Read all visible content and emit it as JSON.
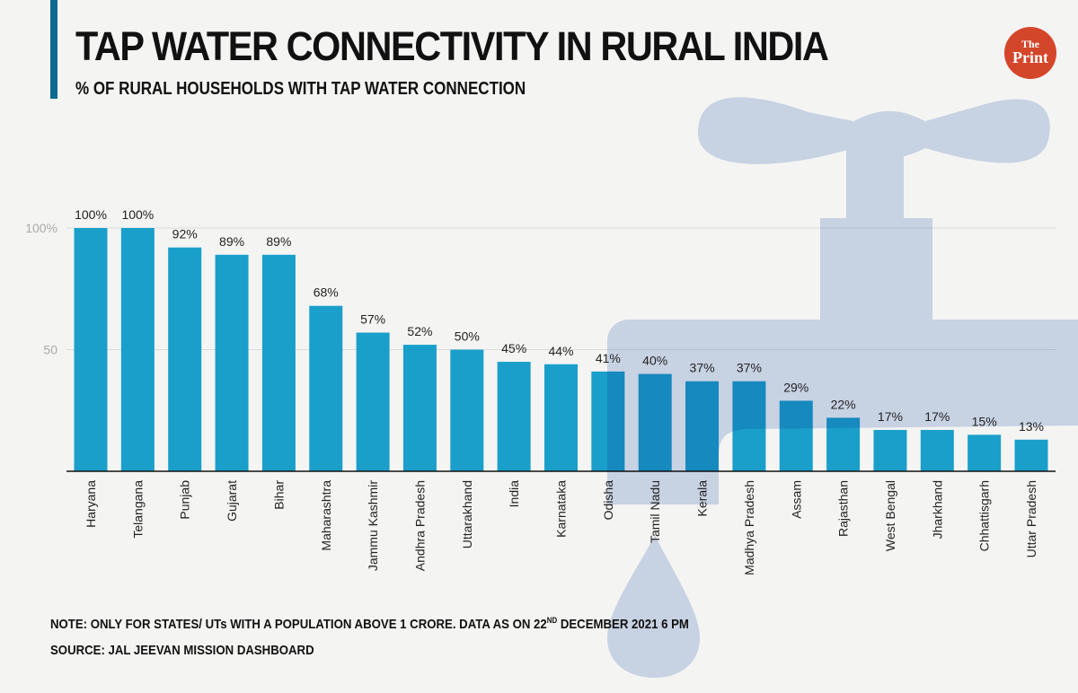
{
  "header": {
    "title": "TAP WATER CONNECTIVITY IN RURAL INDIA",
    "subtitle": "% OF RURAL HOUSEHOLDS WITH TAP WATER CONNECTION",
    "logo_text": "The Print"
  },
  "colors": {
    "bar": "#1a9fcb",
    "accent": "#0c6a92",
    "faucet": "#d0dcef",
    "logo": "#d4462a"
  },
  "background_icon": "tap-faucet-icon",
  "chart_data": {
    "type": "bar",
    "title": "TAP WATER CONNECTIVITY IN RURAL INDIA",
    "subtitle": "% OF RURAL HOUSEHOLDS WITH TAP WATER CONNECTION",
    "categories": [
      "Haryana",
      "Telangana",
      "Punjab",
      "Gujarat",
      "Bihar",
      "Maharashtra",
      "Jammu Kashmir",
      "Andhra Pradesh",
      "Uttarakhand",
      "India",
      "Karnataka",
      "Odisha",
      "Tamil Nadu",
      "Kerala",
      "Madhya Pradesh",
      "Assam",
      "Rajasthan",
      "West Bengal",
      "Jharkhand",
      "Chhattisgarh",
      "Uttar Pradesh"
    ],
    "values": [
      100,
      100,
      92,
      89,
      89,
      68,
      57,
      52,
      50,
      45,
      44,
      41,
      40,
      37,
      37,
      29,
      22,
      17,
      17,
      15,
      13
    ],
    "data_labels": [
      "100%",
      "100%",
      "92%",
      "89%",
      "89%",
      "68%",
      "57%",
      "52%",
      "50%",
      "45%",
      "44%",
      "41%",
      "40%",
      "37%",
      "37%",
      "29%",
      "22%",
      "17%",
      "17%",
      "15%",
      "13%"
    ],
    "yticks": [
      {
        "value": 50,
        "label": "50"
      },
      {
        "value": 100,
        "label": "100%"
      }
    ],
    "ylim": [
      0,
      100
    ],
    "grid": true,
    "xlabel": "",
    "ylabel": ""
  },
  "footer": {
    "note_pre": "NOTE: ONLY FOR STATES/ UTs WITH A POPULATION ABOVE 1 CRORE. DATA AS ON 22",
    "note_sup": "ND",
    "note_post": " DECEMBER 2021 6 PM",
    "source": "SOURCE: JAL JEEVAN MISSION DASHBOARD"
  }
}
